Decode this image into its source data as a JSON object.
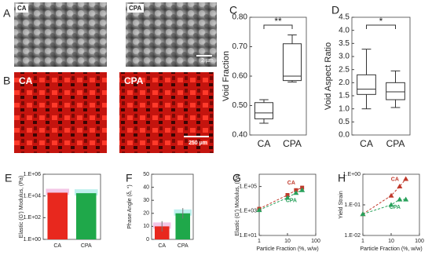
{
  "images": [
    {
      "label": "A",
      "left": "CA",
      "right": "CPA",
      "scale_bar": "2 µm"
    },
    {
      "label": "B",
      "left": "CA",
      "right": "CPA",
      "scale_bar": "250 µm"
    }
  ],
  "chart_data": [
    {
      "type": "box",
      "label": "C",
      "ylabel": "Void Fraction",
      "categories": [
        "CA",
        "CPA"
      ],
      "boxes": [
        {
          "min": 0.44,
          "q1": 0.455,
          "median": 0.475,
          "q3": 0.51,
          "max": 0.52
        },
        {
          "min": 0.58,
          "q1": 0.585,
          "median": 0.6,
          "q3": 0.71,
          "max": 0.74
        }
      ],
      "ylim": [
        0.4,
        0.8
      ],
      "yticks": [
        {
          "value": 0.4,
          "label": "0.40"
        },
        {
          "value": 0.5,
          "label": "0.50"
        },
        {
          "value": 0.6,
          "label": "0.60"
        },
        {
          "value": 0.7,
          "label": "0.70"
        },
        {
          "value": 0.8,
          "label": "0.80"
        }
      ],
      "annotation": "**"
    },
    {
      "type": "box",
      "label": "D",
      "ylabel": "Void Aspect Ratio",
      "categories": [
        "CA",
        "CPA"
      ],
      "boxes": [
        {
          "min": 1.0,
          "q1": 1.55,
          "median": 1.75,
          "q3": 2.3,
          "max": 3.28
        },
        {
          "min": 1.05,
          "q1": 1.35,
          "median": 1.65,
          "q3": 2.0,
          "max": 2.45
        }
      ],
      "ylim": [
        0,
        4.5
      ],
      "yticks": [
        {
          "value": 0,
          "label": "0.0"
        },
        {
          "value": 0.5,
          "label": "0.5"
        },
        {
          "value": 1,
          "label": "1.0"
        },
        {
          "value": 1.5,
          "label": "1.5"
        },
        {
          "value": 2,
          "label": "2.0"
        },
        {
          "value": 2.5,
          "label": "2.5"
        },
        {
          "value": 3,
          "label": "3.0"
        },
        {
          "value": 3.5,
          "label": "3.5"
        },
        {
          "value": 4,
          "label": "4.0"
        },
        {
          "value": 4.5,
          "label": "4.5"
        }
      ],
      "annotation": "*"
    },
    {
      "type": "bar",
      "label": "E",
      "ylabel": "Elastic (G') Modulus, (Pa)",
      "categories": [
        "CA",
        "CPA"
      ],
      "values": [
        20000,
        18000
      ],
      "colors": [
        "#e8281e",
        "#1fa84a"
      ],
      "ylim": [
        1,
        1000000
      ],
      "ylog": true,
      "yticks": [
        {
          "value": 1,
          "label": "1.E+00"
        },
        {
          "value": 100,
          "label": "1.E+02"
        },
        {
          "value": 10000,
          "label": "1.E+04"
        },
        {
          "value": 1000000,
          "label": "1.E+06"
        }
      ]
    },
    {
      "type": "bar",
      "label": "F",
      "ylabel": "Phase Angle (δ, °)",
      "categories": [
        "CA",
        "CPA"
      ],
      "values": [
        10,
        20
      ],
      "errors": [
        4,
        4
      ],
      "colors": [
        "#e8281e",
        "#1fa84a"
      ],
      "ylim": [
        0,
        50
      ],
      "yticks": [
        0,
        10,
        20,
        30,
        40,
        50
      ]
    },
    {
      "type": "scatter",
      "label": "G",
      "xlabel": "Particle Fraction (%, w/w)",
      "ylabel": "Elastic (G') Modulus, (Pa)",
      "xlog": true,
      "ylog": true,
      "xlim": [
        1,
        100
      ],
      "xticks": [
        1,
        10,
        100
      ],
      "ylim": [
        10,
        1000000
      ],
      "yticks": [
        {
          "value": 10,
          "label": "1.E+01"
        },
        {
          "value": 1000,
          "label": "1.E+03"
        },
        {
          "value": 100000,
          "label": "1.E+05"
        }
      ],
      "series": [
        {
          "name": "CA",
          "color": "#c0392b",
          "marker": "square",
          "x": [
            1,
            10,
            20,
            33
          ],
          "values": [
            1500,
            20000,
            50000,
            80000
          ]
        },
        {
          "name": "CPA",
          "color": "#27a05a",
          "marker": "triangle",
          "x": [
            1,
            10,
            20,
            33
          ],
          "values": [
            1200,
            12000,
            30000,
            50000
          ]
        }
      ]
    },
    {
      "type": "scatter",
      "label": "H",
      "xlabel": "Particle Fraction (%, w/w)",
      "ylabel": "Yield Strain",
      "xlog": true,
      "ylog": true,
      "xlim": [
        1,
        100
      ],
      "xticks": [
        1,
        10,
        100
      ],
      "ylim": [
        0.01,
        1
      ],
      "yticks": [
        {
          "value": 0.01,
          "label": "1.E-02"
        },
        {
          "value": 0.1,
          "label": "1.E-01"
        },
        {
          "value": 1,
          "label": "1.E+00"
        }
      ],
      "series": [
        {
          "name": "CA",
          "color": "#c0392b",
          "marker": "triangle",
          "x": [
            1,
            10,
            20,
            33
          ],
          "values": [
            0.05,
            0.2,
            0.4,
            0.7
          ]
        },
        {
          "name": "CPA",
          "color": "#27a05a",
          "marker": "triangle",
          "x": [
            1,
            10,
            20,
            33
          ],
          "values": [
            0.05,
            0.1,
            0.15,
            0.15
          ]
        }
      ]
    }
  ]
}
